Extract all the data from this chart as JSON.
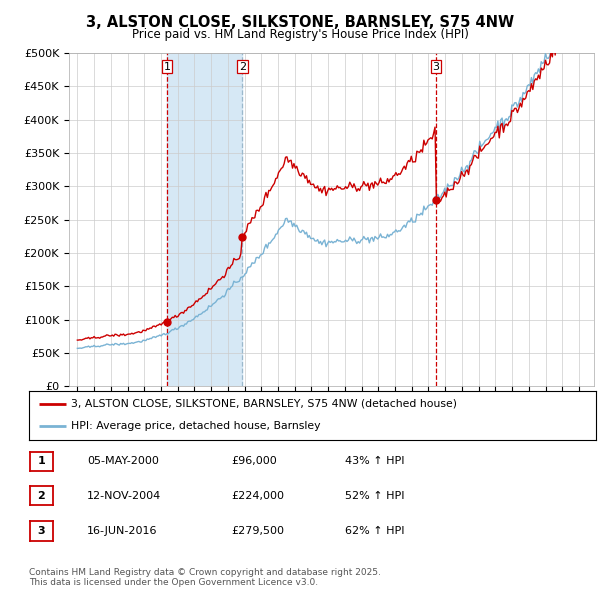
{
  "title": "3, ALSTON CLOSE, SILKSTONE, BARNSLEY, S75 4NW",
  "subtitle": "Price paid vs. HM Land Registry's House Price Index (HPI)",
  "ylim": [
    0,
    500000
  ],
  "yticks": [
    0,
    50000,
    100000,
    150000,
    200000,
    250000,
    300000,
    350000,
    400000,
    450000,
    500000
  ],
  "ytick_labels": [
    "£0",
    "£50K",
    "£100K",
    "£150K",
    "£200K",
    "£250K",
    "£300K",
    "£350K",
    "£400K",
    "£450K",
    "£500K"
  ],
  "sale_dates": [
    2000.37,
    2004.87,
    2016.46
  ],
  "sale_prices": [
    96000,
    224000,
    279500
  ],
  "sale_labels": [
    "1",
    "2",
    "3"
  ],
  "hpi_color": "#7ab3d4",
  "price_color": "#cc0000",
  "shade_color": "#d6e8f5",
  "legend_label_red": "3, ALSTON CLOSE, SILKSTONE, BARNSLEY, S75 4NW (detached house)",
  "legend_label_blue": "HPI: Average price, detached house, Barnsley",
  "table_rows": [
    [
      "1",
      "05-MAY-2000",
      "£96,000",
      "43% ↑ HPI"
    ],
    [
      "2",
      "12-NOV-2004",
      "£224,000",
      "52% ↑ HPI"
    ],
    [
      "3",
      "16-JUN-2016",
      "£279,500",
      "62% ↑ HPI"
    ]
  ],
  "footer": "Contains HM Land Registry data © Crown copyright and database right 2025.\nThis data is licensed under the Open Government Licence v3.0.",
  "background_color": "#ffffff",
  "grid_color": "#cccccc",
  "dashed_line_color": "#cc0000",
  "dashed_line_color2": "#9ab8cc"
}
